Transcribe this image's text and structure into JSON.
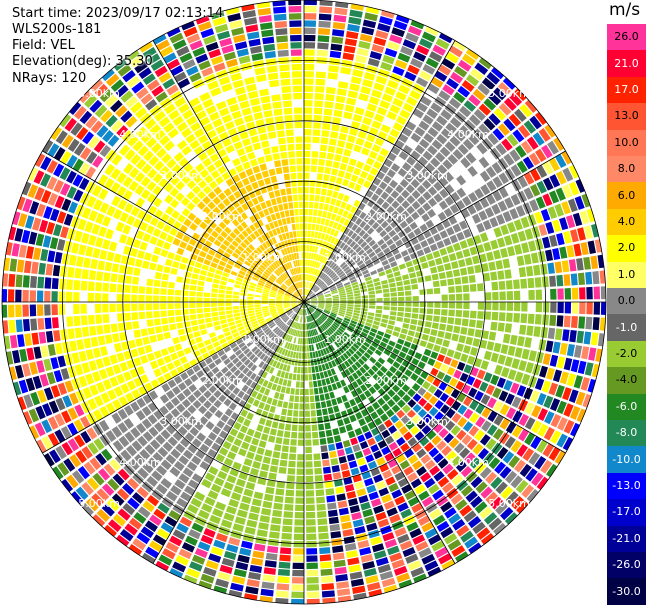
{
  "header": {
    "start_time": "Start time: 2023/09/17 02:13:14",
    "instrument": "WLS200s-181",
    "field": "Field: VEL",
    "elevation": "Elevation(deg): 35.30",
    "nrays": "NRays: 120"
  },
  "chart_data": {
    "type": "heatmap",
    "subtype": "polar-ppi",
    "title": "",
    "units": "m/s",
    "n_rays": 120,
    "range_rings_km": [
      1.0,
      2.0,
      3.0,
      4.0,
      5.0
    ],
    "range_labels": [
      "1.00km",
      "2.00km",
      "3.00km",
      "4.00km",
      "5.00km"
    ],
    "max_range_km": 5.0,
    "colorbar": {
      "label": "m/s",
      "ticks": [
        "26.0",
        "21.0",
        "17.0",
        "13.0",
        "10.0",
        "8.0",
        "6.0",
        "4.0",
        "2.0",
        "1.0",
        "0.0",
        "-1.0",
        "-2.0",
        "-4.0",
        "-6.0",
        "-8.0",
        "-10.0",
        "-13.0",
        "-17.0",
        "-21.0",
        "-26.0",
        "-30.0"
      ],
      "colors": [
        "#ff3399",
        "#ff0033",
        "#ff2200",
        "#ff5533",
        "#ff7755",
        "#ff8866",
        "#ffaa00",
        "#ffcc00",
        "#ffff00",
        "#ffff66",
        "#888888",
        "#666666",
        "#99cc33",
        "#669922",
        "#228822",
        "#228855",
        "#1188cc",
        "#0000ff",
        "#0000cc",
        "#000099",
        "#000066",
        "#000044"
      ]
    },
    "regions": [
      {
        "sector_deg": [
          290,
          355
        ],
        "range_km": [
          0,
          2.4
        ],
        "value_ms": 4.0
      },
      {
        "sector_deg": [
          240,
          30
        ],
        "range_km": [
          0,
          4.0
        ],
        "value_ms": 2.0
      },
      {
        "sector_deg": [
          30,
          70
        ],
        "range_km": [
          0,
          4.2
        ],
        "value_ms": 0.0
      },
      {
        "sector_deg": [
          70,
          110
        ],
        "range_km": [
          0,
          4.0
        ],
        "value_ms": -2.0
      },
      {
        "sector_deg": [
          110,
          175
        ],
        "range_km": [
          0,
          2.3
        ],
        "value_ms": -6.0
      },
      {
        "sector_deg": [
          175,
          210
        ],
        "range_km": [
          0,
          4.0
        ],
        "value_ms": -2.0
      },
      {
        "sector_deg": [
          210,
          240
        ],
        "range_km": [
          0,
          4.0
        ],
        "value_ms": 0.0
      }
    ]
  }
}
